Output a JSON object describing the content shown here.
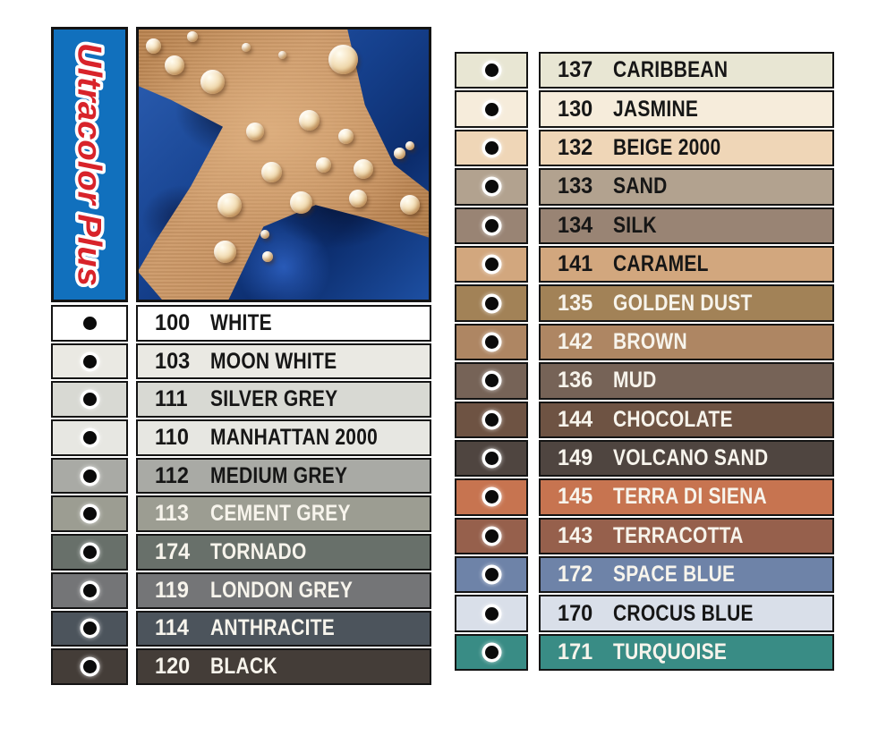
{
  "banner": {
    "label": "Ultracolor Plus",
    "bg_color": "#1170bd",
    "label_color": "#d8232a",
    "outline_color": "#ffffff"
  },
  "photo": {
    "description": "water droplets beading on tan grout cross between blue tiles"
  },
  "style": {
    "text_dark": "#161616",
    "text_light": "#f7f4ec",
    "border_color": "#141414"
  },
  "columns": {
    "left": {
      "rows": [
        {
          "code": "100",
          "name": "WHITE",
          "swatch_color": "#ffffff",
          "text": "dark"
        },
        {
          "code": "103",
          "name": "MOON WHITE",
          "swatch_color": "#eae9e3",
          "text": "dark"
        },
        {
          "code": "111",
          "name": "SILVER GREY",
          "swatch_color": "#d8d9d3",
          "text": "dark"
        },
        {
          "code": "110",
          "name": "MANHATTAN 2000",
          "swatch_color": "#e7e7e2",
          "text": "dark"
        },
        {
          "code": "112",
          "name": "MEDIUM GREY",
          "swatch_color": "#a9aaa5",
          "text": "dark"
        },
        {
          "code": "113",
          "name": "CEMENT GREY",
          "swatch_color": "#9c9d92",
          "text": "light"
        },
        {
          "code": "174",
          "name": "TORNADO",
          "swatch_color": "#68706a",
          "text": "light"
        },
        {
          "code": "119",
          "name": "LONDON GREY",
          "swatch_color": "#747577",
          "text": "light"
        },
        {
          "code": "114",
          "name": "ANTHRACITE",
          "swatch_color": "#4c545c",
          "text": "light"
        },
        {
          "code": "120",
          "name": "BLACK",
          "swatch_color": "#443d38",
          "text": "light"
        }
      ]
    },
    "right": {
      "rows": [
        {
          "code": "137",
          "name": "CARIBBEAN",
          "swatch_color": "#e8e6d3",
          "text": "dark"
        },
        {
          "code": "130",
          "name": "JASMINE",
          "swatch_color": "#f6ecdb",
          "text": "dark"
        },
        {
          "code": "132",
          "name": "BEIGE 2000",
          "swatch_color": "#efd6b7",
          "text": "dark"
        },
        {
          "code": "133",
          "name": "SAND",
          "swatch_color": "#b2a28f",
          "text": "dark"
        },
        {
          "code": "134",
          "name": "SILK",
          "swatch_color": "#998474",
          "text": "dark"
        },
        {
          "code": "141",
          "name": "CARAMEL",
          "swatch_color": "#d2a77e",
          "text": "dark"
        },
        {
          "code": "135",
          "name": "GOLDEN DUST",
          "swatch_color": "#a28257",
          "text": "light"
        },
        {
          "code": "142",
          "name": "BROWN",
          "swatch_color": "#ae8663",
          "text": "light"
        },
        {
          "code": "136",
          "name": "MUD",
          "swatch_color": "#766357",
          "text": "light"
        },
        {
          "code": "144",
          "name": "CHOCOLATE",
          "swatch_color": "#6e5343",
          "text": "light"
        },
        {
          "code": "149",
          "name": "VOLCANO SAND",
          "swatch_color": "#4f4540",
          "text": "light"
        },
        {
          "code": "145",
          "name": "TERRA DI SIENA",
          "swatch_color": "#c77450",
          "text": "light"
        },
        {
          "code": "143",
          "name": "TERRACOTTA",
          "swatch_color": "#96604c",
          "text": "light"
        },
        {
          "code": "172",
          "name": "SPACE BLUE",
          "swatch_color": "#6e83a8",
          "text": "light"
        },
        {
          "code": "170",
          "name": "CROCUS BLUE",
          "swatch_color": "#d9dfe9",
          "text": "dark"
        },
        {
          "code": "171",
          "name": "TURQUOISE",
          "swatch_color": "#398c85",
          "text": "light"
        }
      ]
    }
  }
}
